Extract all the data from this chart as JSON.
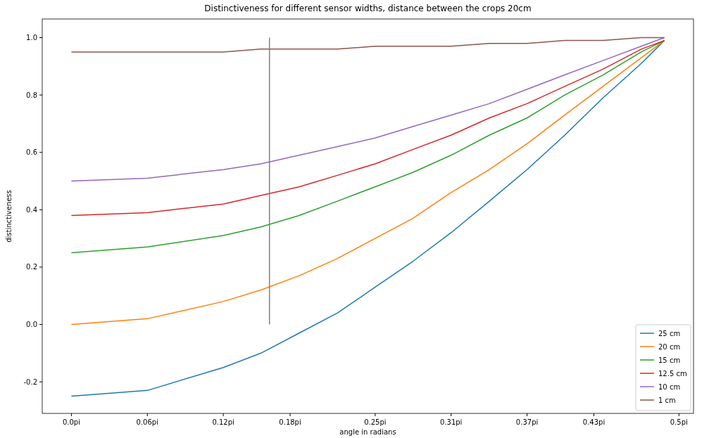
{
  "chart_data": {
    "type": "line",
    "title": "Distinctiveness for different sensor widths, distance between the crops 20cm",
    "xlabel": "angle in radians",
    "ylabel": "distinctiveness",
    "x": [
      0,
      0.0625,
      0.125,
      0.156,
      0.1875,
      0.219,
      0.25,
      0.281,
      0.3125,
      0.344,
      0.375,
      0.406,
      0.4375,
      0.469,
      0.488
    ],
    "series": [
      {
        "name": "25 cm",
        "color": "#1f77b4",
        "values": [
          -0.25,
          -0.23,
          -0.15,
          -0.1,
          -0.03,
          0.04,
          0.13,
          0.22,
          0.32,
          0.43,
          0.54,
          0.66,
          0.79,
          0.91,
          0.99
        ]
      },
      {
        "name": "20 cm",
        "color": "#ff7f0e",
        "values": [
          0,
          0.02,
          0.08,
          0.12,
          0.17,
          0.23,
          0.3,
          0.37,
          0.46,
          0.54,
          0.63,
          0.73,
          0.83,
          0.93,
          0.99
        ]
      },
      {
        "name": "15 cm",
        "color": "#2ca02c",
        "values": [
          0.25,
          0.27,
          0.31,
          0.34,
          0.38,
          0.43,
          0.48,
          0.53,
          0.59,
          0.66,
          0.72,
          0.8,
          0.87,
          0.95,
          0.99
        ]
      },
      {
        "name": "12.5 cm",
        "color": "#d62728",
        "values": [
          0.38,
          0.39,
          0.42,
          0.45,
          0.48,
          0.52,
          0.56,
          0.61,
          0.66,
          0.72,
          0.77,
          0.83,
          0.89,
          0.96,
          0.99
        ]
      },
      {
        "name": "10 cm",
        "color": "#9467bd",
        "values": [
          0.5,
          0.51,
          0.54,
          0.56,
          0.59,
          0.62,
          0.65,
          0.69,
          0.73,
          0.77,
          0.82,
          0.87,
          0.92,
          0.97,
          1.0
        ]
      },
      {
        "name": "1 cm",
        "color": "#8c564b",
        "values": [
          0.95,
          0.95,
          0.95,
          0.96,
          0.96,
          0.96,
          0.97,
          0.97,
          0.97,
          0.98,
          0.98,
          0.99,
          0.99,
          1.0,
          1.0
        ]
      },
      {
        "color": "#808080",
        "x": [
          0.163,
          0.163
        ],
        "values": [
          0,
          1
        ]
      }
    ],
    "xlim": [
      -0.024,
      0.512
    ],
    "ylim": [
      -0.31,
      1.065
    ],
    "xticks": [
      {
        "value": 0,
        "label": "0.0pi"
      },
      {
        "value": 0.0625,
        "label": "0.06pi"
      },
      {
        "value": 0.125,
        "label": "0.12pi"
      },
      {
        "value": 0.18,
        "label": "0.18pi"
      },
      {
        "value": 0.25,
        "label": "0.25pi"
      },
      {
        "value": 0.3125,
        "label": "0.31pi"
      },
      {
        "value": 0.375,
        "label": "0.37pi"
      },
      {
        "value": 0.43,
        "label": "0.43pi"
      },
      {
        "value": 0.5,
        "label": "0.5pi"
      }
    ],
    "yticks": [
      {
        "value": -0.2,
        "label": "-0.2"
      },
      {
        "value": 0,
        "label": "0.0"
      },
      {
        "value": 0.2,
        "label": "0.2"
      },
      {
        "value": 0.4,
        "label": "0.4"
      },
      {
        "value": 0.6,
        "label": "0.6"
      },
      {
        "value": 0.8,
        "label": "0.8"
      },
      {
        "value": 1,
        "label": "1.0"
      }
    ],
    "legend": "bottom right",
    "grid": false
  }
}
